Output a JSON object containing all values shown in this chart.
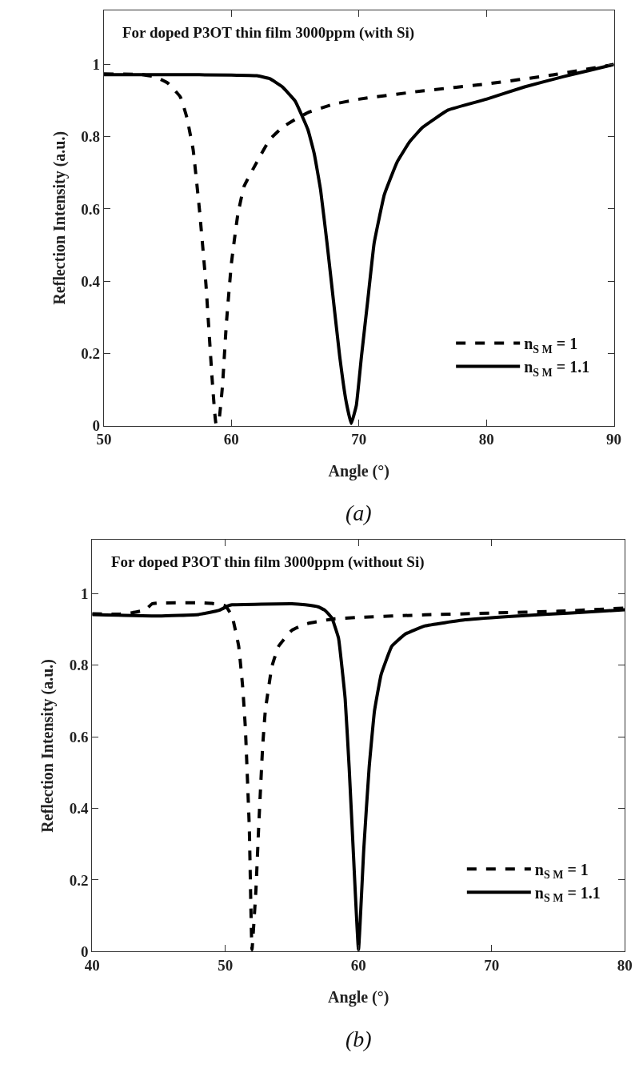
{
  "chart_data": [
    {
      "type": "line",
      "title": "For doped P3OT thin film 3000ppm (with Si)",
      "xlabel": "Angle (°)",
      "ylabel": "Reflection Intensity (a.u.)",
      "annotations": [
        "(a)"
      ],
      "xlim": [
        50,
        90
      ],
      "xticks": [
        50,
        60,
        70,
        80,
        90
      ],
      "ylim": [
        0,
        1.15
      ],
      "yticks": [
        0,
        0.2,
        0.4,
        0.6,
        0.8,
        1
      ],
      "legend": "bottom right",
      "series": [
        {
          "name": "n$_{S M}$ = 1",
          "color": "#000000",
          "line_style": "dashed",
          "x": [
            50,
            53,
            54,
            55,
            56,
            56.5,
            57,
            57.5,
            58,
            58.5,
            58.8,
            59,
            59.3,
            59.6,
            60,
            60.5,
            61,
            62,
            63,
            64,
            65,
            66,
            68,
            70,
            75,
            80,
            85,
            90
          ],
          "values": [
            0.974,
            0.972,
            0.966,
            0.949,
            0.91,
            0.854,
            0.764,
            0.596,
            0.393,
            0.124,
            0.005,
            0.01,
            0.11,
            0.28,
            0.449,
            0.584,
            0.663,
            0.73,
            0.792,
            0.826,
            0.848,
            0.867,
            0.89,
            0.904,
            0.927,
            0.946,
            0.97,
            1.0
          ]
        },
        {
          "name": "n$_{S M}$ = 1.1",
          "color": "#000000",
          "line_style": "solid",
          "x": [
            50,
            55,
            60,
            62,
            63,
            64,
            65,
            66,
            66.5,
            67,
            67.5,
            68,
            68.5,
            69,
            69.4,
            69.8,
            70.2,
            70.7,
            71.2,
            72,
            73,
            74,
            75,
            77,
            80,
            83,
            86,
            88,
            90
          ],
          "values": [
            0.972,
            0.972,
            0.971,
            0.969,
            0.961,
            0.938,
            0.899,
            0.82,
            0.753,
            0.652,
            0.506,
            0.348,
            0.191,
            0.067,
            0.006,
            0.056,
            0.191,
            0.348,
            0.506,
            0.64,
            0.73,
            0.787,
            0.826,
            0.874,
            0.904,
            0.938,
            0.966,
            0.983,
            1.0
          ]
        }
      ]
    },
    {
      "type": "line",
      "title": "For doped P3OT thin film 3000ppm (without Si)",
      "xlabel": "Angle (°)",
      "ylabel": "Reflection Intensity (a.u.)",
      "annotations": [
        "(b)"
      ],
      "xlim": [
        40,
        80
      ],
      "xticks": [
        40,
        50,
        60,
        70,
        80
      ],
      "ylim": [
        0,
        1.15
      ],
      "yticks": [
        0,
        0.2,
        0.4,
        0.6,
        0.8,
        1
      ],
      "legend": "bottom right",
      "series": [
        {
          "name": "n$_{S M}$ = 1",
          "color": "#000000",
          "line_style": "dashed",
          "x": [
            40,
            42,
            43,
            44,
            44.5,
            45,
            48,
            49,
            50,
            50.5,
            51,
            51.3,
            51.5,
            51.8,
            52,
            52.3,
            52.5,
            52.8,
            53,
            53.5,
            54,
            55,
            56,
            58,
            60,
            65,
            70,
            75,
            80
          ],
          "values": [
            0.944,
            0.943,
            0.947,
            0.955,
            0.972,
            0.974,
            0.975,
            0.973,
            0.966,
            0.938,
            0.854,
            0.74,
            0.627,
            0.345,
            0.005,
            0.175,
            0.345,
            0.571,
            0.672,
            0.797,
            0.853,
            0.898,
            0.915,
            0.929,
            0.934,
            0.941,
            0.946,
            0.951,
            0.96
          ]
        },
        {
          "name": "n$_{S M}$ = 1.1",
          "color": "#000000",
          "line_style": "solid",
          "x": [
            40,
            45,
            48,
            49.5,
            50.2,
            50.5,
            55,
            56,
            57,
            57.5,
            58,
            58.5,
            59,
            59.3,
            59.6,
            60,
            60.4,
            60.8,
            61.2,
            61.7,
            62.5,
            63.5,
            65,
            68,
            72,
            76,
            80
          ],
          "values": [
            0.942,
            0.938,
            0.942,
            0.953,
            0.966,
            0.969,
            0.972,
            0.969,
            0.963,
            0.953,
            0.932,
            0.876,
            0.706,
            0.514,
            0.288,
            0.005,
            0.288,
            0.514,
            0.672,
            0.774,
            0.853,
            0.887,
            0.91,
            0.927,
            0.938,
            0.946,
            0.955
          ]
        }
      ]
    }
  ]
}
